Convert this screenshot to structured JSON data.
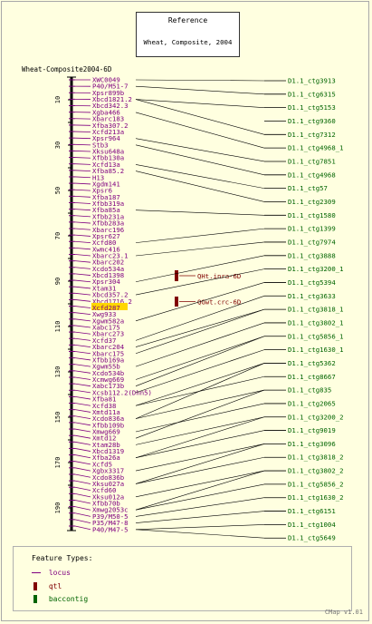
{
  "reference": {
    "title": "Reference",
    "subtitle": "Wheat, Composite, 2004"
  },
  "map": {
    "name": "Wheat-Composite2004-6D",
    "ticks": [
      "10",
      "30",
      "50",
      "70",
      "90",
      "110",
      "130",
      "150",
      "170",
      "190"
    ],
    "loci": [
      "XWC0049",
      "P40/M51-7",
      "Xpsr899b",
      "Xbcd1821.2",
      "Xbcd342.3",
      "Xgba466",
      "Xbarc183",
      "Xfba307.2",
      "Xcfd213a",
      "Xpsr964",
      "Stb3",
      "Xksu648a",
      "Xfbb130a",
      "Xcfd13a",
      "Xfba85.2",
      "H13",
      "Xgdm141",
      "Xpsr6",
      "Xfba187",
      "Xfbb319a",
      "Xfba85a",
      "Xfbb231a",
      "Xfbb283a",
      "Xbarc196",
      "Xpsr627",
      "Xcfd80",
      "Xwmc416",
      "Xbarc23.1",
      "Xbarc202",
      "Xcdo534a",
      "Xbcd1398",
      "Xpsr304",
      "Xtam31",
      "Xbcd357.2",
      "Xbcd1716.2",
      "Xcfd287",
      "Xwg933",
      "Xgwm582a",
      "Xabc175",
      "Xbarc273",
      "Xcfd37",
      "Xbarc204",
      "Xbarc175",
      "Xfbb169a",
      "Xgwm55b",
      "Xcdo534b",
      "Xcmwg669",
      "Xabc173b",
      "Xcsb112.2(Dhn5)",
      "Xfba81",
      "Xcfd38",
      "Xmtd11a",
      "Xcdo836a",
      "Xfbb109b",
      "Xmwg669",
      "Xmtd12",
      "Xtam28b",
      "Xbcd1319",
      "Xfba26a",
      "Xcfd5",
      "Xgbx3317",
      "Xcdo836b",
      "Xksu027a",
      "Xcfd60",
      "Xksu012a",
      "Xfbb70b",
      "Xmwg2053c",
      "P39/M50-5",
      "P35/M47-8",
      "P40/M47-5"
    ],
    "highlight_index": 35
  },
  "qtls": [
    {
      "label": "QHt.inra-6D"
    },
    {
      "label": "QGwt.crc-6D"
    }
  ],
  "contigs": [
    "D1.1_ctg3913",
    "D1.1_ctg6315",
    "D1.1_ctg5153",
    "D1.1_ctg9360",
    "D1.1_ctg7312",
    "D1.1_ctg4968_1",
    "D1.1_ctg7851",
    "D1.1_ctg4968",
    "D1.1_ctg57",
    "D1.1_ctg2309",
    "D1.1_ctg1580",
    "D1.1_ctg1399",
    "D1.1_ctg7974",
    "D1.1_ctg3888",
    "D1.1_ctg3200_1",
    "D1.1_ctg5394",
    "D1.1_ctg3633",
    "D1.1_ctg3818_1",
    "D1.1_ctg3802_1",
    "D1.1_ctg5856_1",
    "D1.1_ctg1630_1",
    "D1.1_ctg5362",
    "D1.1_ctg8667",
    "D1.1_ctg835",
    "D1.1_ctg2065",
    "D1.1_ctg3200_2",
    "D1.1_ctg9019",
    "D1.1_ctg3096",
    "D1.1_ctg3818_2",
    "D1.1_ctg3802_2",
    "D1.1_ctg5856_2",
    "D1.1_ctg1630_2",
    "D1.1_ctg6151",
    "D1.1_ctg1004",
    "D1.1_ctg5649"
  ],
  "contig_links": [
    [
      0,
      0
    ],
    [
      1,
      1
    ],
    [
      2,
      3
    ],
    [
      4,
      3
    ],
    [
      5,
      5
    ],
    [
      6,
      9
    ],
    [
      7,
      10
    ],
    [
      8,
      13
    ],
    [
      9,
      14
    ],
    [
      10,
      20
    ],
    [
      11,
      25
    ],
    [
      12,
      27
    ],
    [
      13,
      31
    ],
    [
      14,
      33
    ],
    [
      15,
      37
    ],
    [
      16,
      40
    ],
    [
      17,
      42
    ],
    [
      18,
      44
    ],
    [
      19,
      46
    ],
    [
      20,
      48
    ],
    [
      21,
      50
    ],
    [
      22,
      50
    ],
    [
      23,
      52
    ],
    [
      24,
      54
    ],
    [
      25,
      56
    ],
    [
      26,
      58
    ],
    [
      27,
      60
    ],
    [
      28,
      62
    ],
    [
      29,
      64
    ],
    [
      30,
      66
    ],
    [
      31,
      67
    ],
    [
      32,
      68
    ],
    [
      33,
      69
    ],
    [
      34,
      69
    ],
    [
      17,
      41
    ],
    [
      19,
      47
    ],
    [
      21,
      52
    ],
    [
      23,
      55
    ],
    [
      25,
      58
    ],
    [
      27,
      62
    ],
    [
      29,
      66
    ]
  ],
  "legend": {
    "title": "Feature Types:",
    "items": [
      {
        "label": "locus",
        "color": "#800080"
      },
      {
        "label": "qtl",
        "color": "#800000"
      },
      {
        "label": "baccontig",
        "color": "#006400"
      }
    ]
  },
  "footer": "CMap v1.01",
  "colors": {
    "locus": "#800080",
    "qtl": "#800000",
    "contig": "#006400",
    "highlight": "#ffd700"
  }
}
